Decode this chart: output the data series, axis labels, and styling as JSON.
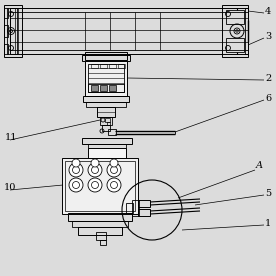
{
  "bg_color": "#dcdcdc",
  "line_color": "#000000",
  "label_color": "#000000",
  "fig_width": 2.76,
  "fig_height": 2.76,
  "dpi": 100
}
